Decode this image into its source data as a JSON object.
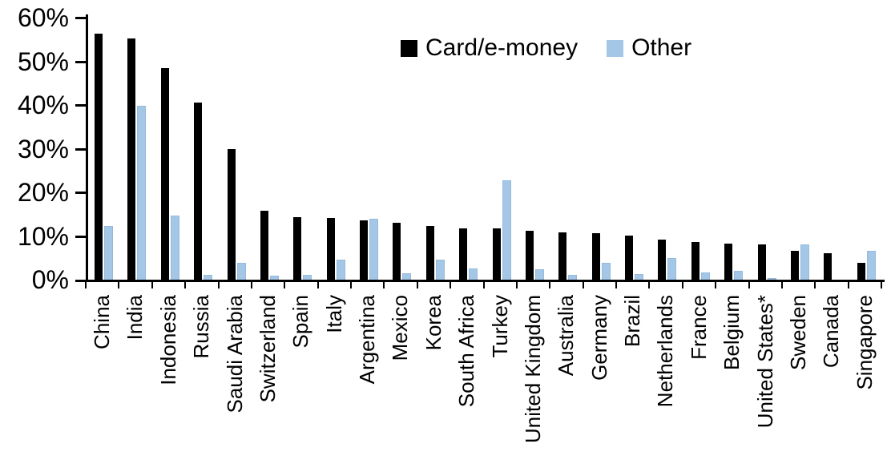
{
  "chart_data": {
    "type": "bar",
    "title": "",
    "xlabel": "",
    "ylabel": "",
    "ylim": [
      0,
      60
    ],
    "ytick_step": 10,
    "ytick_labels": [
      "0%",
      "10%",
      "20%",
      "30%",
      "40%",
      "50%",
      "60%"
    ],
    "grid": false,
    "legend_position": "top-center",
    "legend": {
      "card_label": "Card/e-money",
      "other_label": "Other"
    },
    "colors": {
      "card": "#000000",
      "other": "#A4C7E7"
    },
    "categories": [
      "China",
      "India",
      "Indonesia",
      "Russia",
      "Saudi Arabia",
      "Switzerland",
      "Spain",
      "Italy",
      "Argentina",
      "Mexico",
      "Korea",
      "South Africa",
      "Turkey",
      "United Kingdom",
      "Australia",
      "Germany",
      "Brazil",
      "Netherlands",
      "France",
      "Belgium",
      "United States*",
      "Sweden",
      "Canada",
      "Singapore"
    ],
    "series": [
      {
        "name": "Card/e-money",
        "color": "#000000",
        "values": [
          56.4,
          55.3,
          48.4,
          40.6,
          29.9,
          15.7,
          14.3,
          14.2,
          13.5,
          13.0,
          12.3,
          11.8,
          11.7,
          11.2,
          10.9,
          10.7,
          10.1,
          9.2,
          8.7,
          8.2,
          8.0,
          6.6,
          6.1,
          3.9
        ]
      },
      {
        "name": "Other",
        "color": "#A4C7E7",
        "values": [
          12.3,
          39.8,
          14.7,
          1.1,
          3.9,
          1.0,
          1.1,
          4.6,
          13.9,
          1.5,
          4.6,
          2.5,
          22.7,
          2.3,
          1.1,
          3.9,
          1.2,
          5.0,
          1.7,
          2.0,
          0.3,
          8.1,
          0.0,
          6.7
        ]
      }
    ]
  }
}
